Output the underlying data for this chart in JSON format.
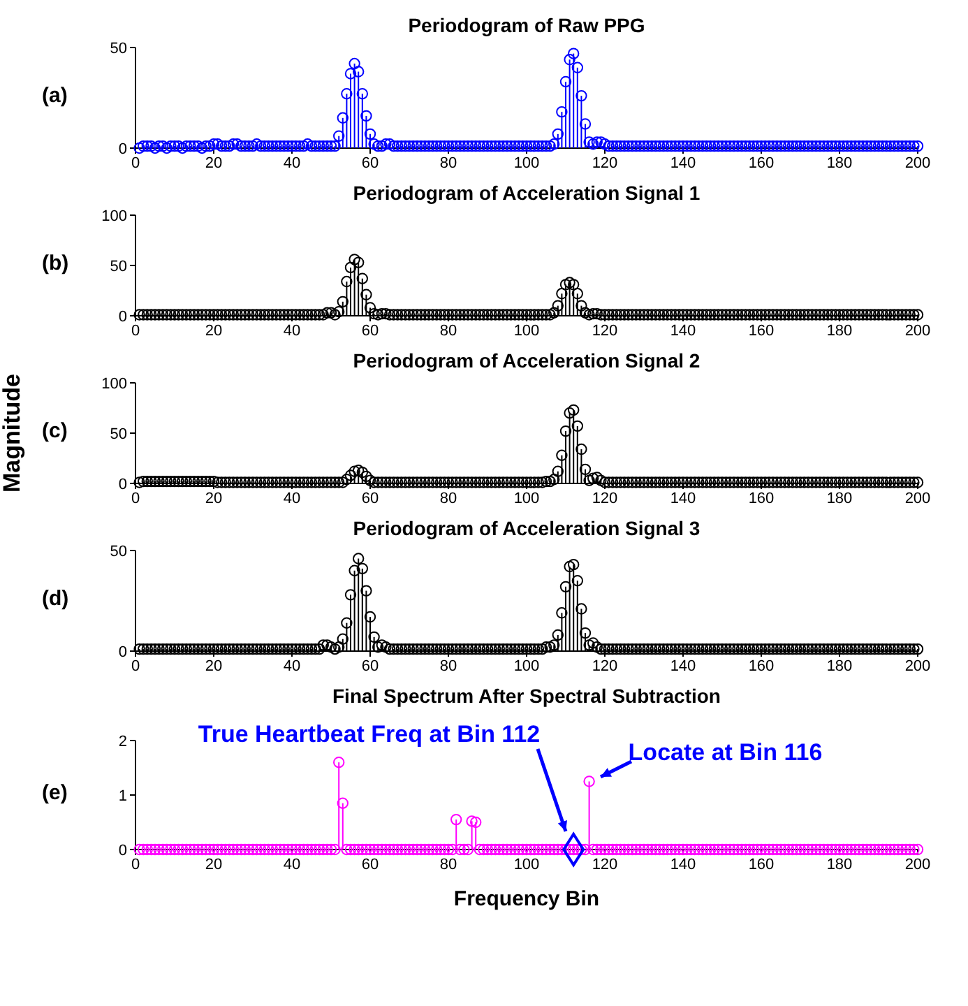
{
  "chart_data": [
    {
      "type": "lollipop",
      "title": "Periodogram of Raw PPG",
      "annotations": [
        "(a)"
      ],
      "marker": "circle",
      "xlim": [
        0,
        200
      ],
      "xticks": [
        0,
        20,
        40,
        60,
        80,
        100,
        120,
        140,
        160,
        180,
        200
      ],
      "ylim": [
        0,
        50
      ],
      "yticks": [
        0,
        50
      ],
      "x": [
        1,
        2,
        3,
        4,
        5,
        6,
        7,
        8,
        9,
        10,
        11,
        12,
        13,
        14,
        15,
        16,
        17,
        18,
        19,
        20,
        21,
        22,
        23,
        24,
        25,
        26,
        27,
        28,
        29,
        30,
        31,
        32,
        33,
        34,
        35,
        36,
        37,
        38,
        39,
        40,
        41,
        42,
        43,
        44,
        45,
        46,
        47,
        48,
        49,
        50,
        51,
        52,
        53,
        54,
        55,
        56,
        57,
        58,
        59,
        60,
        61,
        62,
        63,
        64,
        65,
        66,
        67,
        68,
        69,
        70,
        71,
        72,
        73,
        74,
        75,
        76,
        77,
        78,
        79,
        80,
        81,
        82,
        83,
        84,
        85,
        86,
        87,
        88,
        89,
        90,
        91,
        92,
        93,
        94,
        95,
        96,
        97,
        98,
        99,
        100,
        101,
        102,
        103,
        104,
        105,
        106,
        107,
        108,
        109,
        110,
        111,
        112,
        113,
        114,
        115,
        116,
        117,
        118,
        119,
        120,
        121,
        122,
        123,
        124,
        125,
        126,
        127,
        128,
        129,
        130,
        131,
        132,
        133,
        134,
        135,
        136,
        137,
        138,
        139,
        140,
        141,
        142,
        143,
        144,
        145,
        146,
        147,
        148,
        149,
        150,
        151,
        152,
        153,
        154,
        155,
        156,
        157,
        158,
        159,
        160,
        161,
        162,
        163,
        164,
        165,
        166,
        167,
        168,
        169,
        170,
        171,
        172,
        173,
        174,
        175,
        176,
        177,
        178,
        179,
        180,
        181,
        182,
        183,
        184,
        185,
        186,
        187,
        188,
        189,
        190,
        191,
        192,
        193,
        194,
        195,
        196,
        197,
        198,
        199,
        200
      ],
      "series": [
        {
          "color": "#0000ff",
          "values": [
            0,
            1,
            1,
            1,
            0,
            1,
            1,
            0,
            1,
            1,
            1,
            0,
            1,
            1,
            1,
            1,
            0,
            1,
            1,
            2,
            2,
            1,
            1,
            1,
            2,
            2,
            1,
            1,
            1,
            1,
            2,
            1,
            1,
            1,
            1,
            1,
            1,
            1,
            1,
            1,
            1,
            1,
            1,
            2,
            1,
            1,
            1,
            1,
            1,
            1,
            1,
            6,
            15,
            27,
            37,
            42,
            38,
            27,
            16,
            7,
            2,
            1,
            1,
            2,
            2,
            1,
            1,
            1,
            1,
            1,
            1,
            1,
            1,
            1,
            1,
            1,
            1,
            1,
            1,
            1,
            1,
            1,
            1,
            1,
            1,
            1,
            1,
            1,
            1,
            1,
            1,
            1,
            1,
            1,
            1,
            1,
            1,
            1,
            1,
            1,
            1,
            1,
            1,
            1,
            1,
            1,
            2,
            7,
            18,
            33,
            44,
            47,
            40,
            26,
            12,
            3,
            2,
            3,
            3,
            2,
            1,
            1,
            1,
            1,
            1,
            1,
            1,
            1,
            1,
            1,
            1,
            1,
            1,
            1,
            1,
            1,
            1,
            1,
            1,
            1,
            1,
            1,
            1,
            1,
            1,
            1,
            1,
            1,
            1,
            1,
            1,
            1,
            1,
            1,
            1,
            1,
            1,
            1,
            1,
            1,
            1,
            1,
            1,
            1,
            1,
            1,
            1,
            1,
            1,
            1,
            1,
            1,
            1,
            1,
            1,
            1,
            1,
            1,
            1,
            1,
            1,
            1,
            1,
            1,
            1,
            1,
            1,
            1,
            1,
            1,
            1,
            1,
            1,
            1,
            1,
            1,
            1,
            1,
            1,
            1
          ]
        }
      ]
    },
    {
      "type": "lollipop",
      "title": "Periodogram of Acceleration Signal 1",
      "annotations": [
        "(b)"
      ],
      "marker": "circle",
      "xlim": [
        0,
        200
      ],
      "xticks": [
        0,
        20,
        40,
        60,
        80,
        100,
        120,
        140,
        160,
        180,
        200
      ],
      "ylim": [
        0,
        100
      ],
      "yticks": [
        0,
        50,
        100
      ],
      "x": [
        1,
        2,
        3,
        4,
        5,
        6,
        7,
        8,
        9,
        10,
        11,
        12,
        13,
        14,
        15,
        16,
        17,
        18,
        19,
        20,
        21,
        22,
        23,
        24,
        25,
        26,
        27,
        28,
        29,
        30,
        31,
        32,
        33,
        34,
        35,
        36,
        37,
        38,
        39,
        40,
        41,
        42,
        43,
        44,
        45,
        46,
        47,
        48,
        49,
        50,
        51,
        52,
        53,
        54,
        55,
        56,
        57,
        58,
        59,
        60,
        61,
        62,
        63,
        64,
        65,
        66,
        67,
        68,
        69,
        70,
        71,
        72,
        73,
        74,
        75,
        76,
        77,
        78,
        79,
        80,
        81,
        82,
        83,
        84,
        85,
        86,
        87,
        88,
        89,
        90,
        91,
        92,
        93,
        94,
        95,
        96,
        97,
        98,
        99,
        100,
        101,
        102,
        103,
        104,
        105,
        106,
        107,
        108,
        109,
        110,
        111,
        112,
        113,
        114,
        115,
        116,
        117,
        118,
        119,
        120,
        121,
        122,
        123,
        124,
        125,
        126,
        127,
        128,
        129,
        130,
        131,
        132,
        133,
        134,
        135,
        136,
        137,
        138,
        139,
        140,
        141,
        142,
        143,
        144,
        145,
        146,
        147,
        148,
        149,
        150,
        151,
        152,
        153,
        154,
        155,
        156,
        157,
        158,
        159,
        160,
        161,
        162,
        163,
        164,
        165,
        166,
        167,
        168,
        169,
        170,
        171,
        172,
        173,
        174,
        175,
        176,
        177,
        178,
        179,
        180,
        181,
        182,
        183,
        184,
        185,
        186,
        187,
        188,
        189,
        190,
        191,
        192,
        193,
        194,
        195,
        196,
        197,
        198,
        199,
        200
      ],
      "series": [
        {
          "color": "#000000",
          "values": [
            1,
            1,
            1,
            1,
            1,
            1,
            1,
            1,
            1,
            1,
            1,
            1,
            1,
            1,
            1,
            1,
            1,
            1,
            1,
            1,
            1,
            1,
            1,
            1,
            1,
            1,
            1,
            1,
            1,
            1,
            1,
            1,
            1,
            1,
            1,
            1,
            1,
            1,
            1,
            1,
            1,
            1,
            1,
            1,
            1,
            1,
            1,
            1,
            3,
            3,
            1,
            4,
            14,
            34,
            48,
            56,
            53,
            37,
            21,
            8,
            2,
            1,
            2,
            2,
            1,
            1,
            1,
            1,
            1,
            1,
            1,
            1,
            1,
            1,
            1,
            1,
            1,
            1,
            1,
            1,
            1,
            1,
            1,
            1,
            1,
            1,
            1,
            1,
            1,
            1,
            1,
            1,
            1,
            1,
            1,
            1,
            1,
            1,
            1,
            1,
            1,
            1,
            1,
            1,
            1,
            1,
            3,
            10,
            22,
            31,
            33,
            31,
            22,
            10,
            3,
            1,
            2,
            2,
            1,
            1,
            1,
            1,
            1,
            1,
            1,
            1,
            1,
            1,
            1,
            1,
            1,
            1,
            1,
            1,
            1,
            1,
            1,
            1,
            1,
            1,
            1,
            1,
            1,
            1,
            1,
            1,
            1,
            1,
            1,
            1,
            1,
            1,
            1,
            1,
            1,
            1,
            1,
            1,
            1,
            1,
            1,
            1,
            1,
            1,
            1,
            1,
            1,
            1,
            1,
            1,
            1,
            1,
            1,
            1,
            1,
            1,
            1,
            1,
            1,
            1,
            1,
            1,
            1,
            1,
            1,
            1,
            1,
            1,
            1,
            1,
            1,
            1,
            1,
            1,
            1,
            1,
            1,
            1,
            1,
            1
          ]
        }
      ]
    },
    {
      "type": "lollipop",
      "title": "Periodogram of Acceleration Signal 2",
      "annotations": [
        "(c)"
      ],
      "ylabel": "Magnitude",
      "marker": "circle",
      "xlim": [
        0,
        200
      ],
      "xticks": [
        0,
        20,
        40,
        60,
        80,
        100,
        120,
        140,
        160,
        180,
        200
      ],
      "ylim": [
        0,
        100
      ],
      "yticks": [
        0,
        50,
        100
      ],
      "x": [
        1,
        2,
        3,
        4,
        5,
        6,
        7,
        8,
        9,
        10,
        11,
        12,
        13,
        14,
        15,
        16,
        17,
        18,
        19,
        20,
        21,
        22,
        23,
        24,
        25,
        26,
        27,
        28,
        29,
        30,
        31,
        32,
        33,
        34,
        35,
        36,
        37,
        38,
        39,
        40,
        41,
        42,
        43,
        44,
        45,
        46,
        47,
        48,
        49,
        50,
        51,
        52,
        53,
        54,
        55,
        56,
        57,
        58,
        59,
        60,
        61,
        62,
        63,
        64,
        65,
        66,
        67,
        68,
        69,
        70,
        71,
        72,
        73,
        74,
        75,
        76,
        77,
        78,
        79,
        80,
        81,
        82,
        83,
        84,
        85,
        86,
        87,
        88,
        89,
        90,
        91,
        92,
        93,
        94,
        95,
        96,
        97,
        98,
        99,
        100,
        101,
        102,
        103,
        104,
        105,
        106,
        107,
        108,
        109,
        110,
        111,
        112,
        113,
        114,
        115,
        116,
        117,
        118,
        119,
        120,
        121,
        122,
        123,
        124,
        125,
        126,
        127,
        128,
        129,
        130,
        131,
        132,
        133,
        134,
        135,
        136,
        137,
        138,
        139,
        140,
        141,
        142,
        143,
        144,
        145,
        146,
        147,
        148,
        149,
        150,
        151,
        152,
        153,
        154,
        155,
        156,
        157,
        158,
        159,
        160,
        161,
        162,
        163,
        164,
        165,
        166,
        167,
        168,
        169,
        170,
        171,
        172,
        173,
        174,
        175,
        176,
        177,
        178,
        179,
        180,
        181,
        182,
        183,
        184,
        185,
        186,
        187,
        188,
        189,
        190,
        191,
        192,
        193,
        194,
        195,
        196,
        197,
        198,
        199,
        200
      ],
      "series": [
        {
          "color": "#000000",
          "values": [
            1,
            2,
            2,
            2,
            2,
            2,
            2,
            2,
            2,
            2,
            2,
            2,
            2,
            2,
            2,
            2,
            2,
            2,
            2,
            2,
            1,
            1,
            1,
            1,
            1,
            1,
            1,
            1,
            1,
            1,
            1,
            1,
            1,
            1,
            1,
            1,
            1,
            1,
            1,
            1,
            1,
            1,
            1,
            1,
            1,
            1,
            1,
            1,
            1,
            1,
            1,
            1,
            1,
            4,
            8,
            12,
            13,
            11,
            7,
            3,
            1,
            1,
            1,
            1,
            1,
            1,
            1,
            1,
            1,
            1,
            1,
            1,
            1,
            1,
            1,
            1,
            1,
            1,
            1,
            1,
            1,
            1,
            1,
            1,
            1,
            1,
            1,
            1,
            1,
            1,
            1,
            1,
            1,
            1,
            1,
            1,
            1,
            1,
            1,
            1,
            1,
            1,
            1,
            1,
            2,
            2,
            4,
            12,
            28,
            52,
            70,
            73,
            57,
            34,
            14,
            3,
            5,
            6,
            3,
            1,
            1,
            1,
            1,
            1,
            1,
            1,
            1,
            1,
            1,
            1,
            1,
            1,
            1,
            1,
            1,
            1,
            1,
            1,
            1,
            1,
            1,
            1,
            1,
            1,
            1,
            1,
            1,
            1,
            1,
            1,
            1,
            1,
            1,
            1,
            1,
            1,
            1,
            1,
            1,
            1,
            1,
            1,
            1,
            1,
            1,
            1,
            1,
            1,
            1,
            1,
            1,
            1,
            1,
            1,
            1,
            1,
            1,
            1,
            1,
            1,
            1,
            1,
            1,
            1,
            1,
            1,
            1,
            1,
            1,
            1,
            1,
            1,
            1,
            1,
            1,
            1,
            1,
            1,
            1,
            1
          ]
        }
      ]
    },
    {
      "type": "lollipop",
      "title": "Periodogram of Acceleration Signal 3",
      "annotations": [
        "(d)"
      ],
      "marker": "circle",
      "xlim": [
        0,
        200
      ],
      "xticks": [
        0,
        20,
        40,
        60,
        80,
        100,
        120,
        140,
        160,
        180,
        200
      ],
      "ylim": [
        0,
        50
      ],
      "yticks": [
        0,
        50
      ],
      "x": [
        1,
        2,
        3,
        4,
        5,
        6,
        7,
        8,
        9,
        10,
        11,
        12,
        13,
        14,
        15,
        16,
        17,
        18,
        19,
        20,
        21,
        22,
        23,
        24,
        25,
        26,
        27,
        28,
        29,
        30,
        31,
        32,
        33,
        34,
        35,
        36,
        37,
        38,
        39,
        40,
        41,
        42,
        43,
        44,
        45,
        46,
        47,
        48,
        49,
        50,
        51,
        52,
        53,
        54,
        55,
        56,
        57,
        58,
        59,
        60,
        61,
        62,
        63,
        64,
        65,
        66,
        67,
        68,
        69,
        70,
        71,
        72,
        73,
        74,
        75,
        76,
        77,
        78,
        79,
        80,
        81,
        82,
        83,
        84,
        85,
        86,
        87,
        88,
        89,
        90,
        91,
        92,
        93,
        94,
        95,
        96,
        97,
        98,
        99,
        100,
        101,
        102,
        103,
        104,
        105,
        106,
        107,
        108,
        109,
        110,
        111,
        112,
        113,
        114,
        115,
        116,
        117,
        118,
        119,
        120,
        121,
        122,
        123,
        124,
        125,
        126,
        127,
        128,
        129,
        130,
        131,
        132,
        133,
        134,
        135,
        136,
        137,
        138,
        139,
        140,
        141,
        142,
        143,
        144,
        145,
        146,
        147,
        148,
        149,
        150,
        151,
        152,
        153,
        154,
        155,
        156,
        157,
        158,
        159,
        160,
        161,
        162,
        163,
        164,
        165,
        166,
        167,
        168,
        169,
        170,
        171,
        172,
        173,
        174,
        175,
        176,
        177,
        178,
        179,
        180,
        181,
        182,
        183,
        184,
        185,
        186,
        187,
        188,
        189,
        190,
        191,
        192,
        193,
        194,
        195,
        196,
        197,
        198,
        199,
        200
      ],
      "series": [
        {
          "color": "#000000",
          "values": [
            1,
            1,
            1,
            1,
            1,
            1,
            1,
            1,
            1,
            1,
            1,
            1,
            1,
            1,
            1,
            1,
            1,
            1,
            1,
            1,
            1,
            1,
            1,
            1,
            1,
            1,
            1,
            1,
            1,
            1,
            1,
            1,
            1,
            1,
            1,
            1,
            1,
            1,
            1,
            1,
            1,
            1,
            1,
            1,
            1,
            1,
            1,
            3,
            3,
            2,
            1,
            2,
            6,
            14,
            28,
            40,
            46,
            41,
            30,
            17,
            7,
            2,
            3,
            2,
            1,
            1,
            1,
            1,
            1,
            1,
            1,
            1,
            1,
            1,
            1,
            1,
            1,
            1,
            1,
            1,
            1,
            1,
            1,
            1,
            1,
            1,
            1,
            1,
            1,
            1,
            1,
            1,
            1,
            1,
            1,
            1,
            1,
            1,
            1,
            1,
            1,
            1,
            1,
            1,
            2,
            2,
            3,
            8,
            19,
            32,
            42,
            43,
            35,
            21,
            9,
            3,
            4,
            2,
            1,
            1,
            1,
            1,
            1,
            1,
            1,
            1,
            1,
            1,
            1,
            1,
            1,
            1,
            1,
            1,
            1,
            1,
            1,
            1,
            1,
            1,
            1,
            1,
            1,
            1,
            1,
            1,
            1,
            1,
            1,
            1,
            1,
            1,
            1,
            1,
            1,
            1,
            1,
            1,
            1,
            1,
            1,
            1,
            1,
            1,
            1,
            1,
            1,
            1,
            1,
            1,
            1,
            1,
            1,
            1,
            1,
            1,
            1,
            1,
            1,
            1,
            1,
            1,
            1,
            1,
            1,
            1,
            1,
            1,
            1,
            1,
            1,
            1,
            1,
            1,
            1,
            1,
            1,
            1,
            1,
            1
          ]
        }
      ]
    },
    {
      "type": "lollipop",
      "title": "Final Spectrum After Spectral Subtraction",
      "xlabel": "Frequency Bin",
      "annotations": [
        "(e)",
        "True Heartbeat Freq at Bin 112",
        {
          "text": "Locate at Bin 116",
          "x": 116,
          "y": 1.25
        }
      ],
      "marker": "circle",
      "xlim": [
        0,
        200
      ],
      "xticks": [
        0,
        20,
        40,
        60,
        80,
        100,
        120,
        140,
        160,
        180,
        200
      ],
      "ylim": [
        0,
        2
      ],
      "yticks": [
        0,
        1,
        2
      ],
      "x": [
        1,
        2,
        3,
        4,
        5,
        6,
        7,
        8,
        9,
        10,
        11,
        12,
        13,
        14,
        15,
        16,
        17,
        18,
        19,
        20,
        21,
        22,
        23,
        24,
        25,
        26,
        27,
        28,
        29,
        30,
        31,
        32,
        33,
        34,
        35,
        36,
        37,
        38,
        39,
        40,
        41,
        42,
        43,
        44,
        45,
        46,
        47,
        48,
        49,
        50,
        51,
        52,
        53,
        54,
        55,
        56,
        57,
        58,
        59,
        60,
        61,
        62,
        63,
        64,
        65,
        66,
        67,
        68,
        69,
        70,
        71,
        72,
        73,
        74,
        75,
        76,
        77,
        78,
        79,
        80,
        81,
        82,
        83,
        84,
        85,
        86,
        87,
        88,
        89,
        90,
        91,
        92,
        93,
        94,
        95,
        96,
        97,
        98,
        99,
        100,
        101,
        102,
        103,
        104,
        105,
        106,
        107,
        108,
        109,
        110,
        111,
        112,
        113,
        114,
        115,
        116,
        117,
        118,
        119,
        120,
        121,
        122,
        123,
        124,
        125,
        126,
        127,
        128,
        129,
        130,
        131,
        132,
        133,
        134,
        135,
        136,
        137,
        138,
        139,
        140,
        141,
        142,
        143,
        144,
        145,
        146,
        147,
        148,
        149,
        150,
        151,
        152,
        153,
        154,
        155,
        156,
        157,
        158,
        159,
        160,
        161,
        162,
        163,
        164,
        165,
        166,
        167,
        168,
        169,
        170,
        171,
        172,
        173,
        174,
        175,
        176,
        177,
        178,
        179,
        180,
        181,
        182,
        183,
        184,
        185,
        186,
        187,
        188,
        189,
        190,
        191,
        192,
        193,
        194,
        195,
        196,
        197,
        198,
        199,
        200
      ],
      "series": [
        {
          "color": "#ff00ff",
          "values": [
            0,
            0,
            0,
            0,
            0,
            0,
            0,
            0,
            0,
            0,
            0,
            0,
            0,
            0,
            0,
            0,
            0,
            0,
            0,
            0,
            0,
            0,
            0,
            0,
            0,
            0,
            0,
            0,
            0,
            0,
            0,
            0,
            0,
            0,
            0,
            0,
            0,
            0,
            0,
            0,
            0,
            0,
            0,
            0,
            0,
            0,
            0,
            0,
            0,
            0,
            0,
            1.6,
            0.85,
            0,
            0,
            0,
            0,
            0,
            0,
            0,
            0,
            0,
            0,
            0,
            0,
            0,
            0,
            0,
            0,
            0,
            0,
            0,
            0,
            0,
            0,
            0,
            0,
            0,
            0,
            0,
            0,
            0.55,
            0,
            0,
            0,
            0.52,
            0.5,
            0,
            0,
            0,
            0,
            0,
            0,
            0,
            0,
            0,
            0,
            0,
            0,
            0,
            0,
            0,
            0,
            0,
            0,
            0,
            0,
            0,
            0,
            0,
            0,
            0,
            0,
            0,
            0,
            1.25,
            0,
            0,
            0,
            0,
            0,
            0,
            0,
            0,
            0,
            0,
            0,
            0,
            0,
            0,
            0,
            0,
            0,
            0,
            0,
            0,
            0,
            0,
            0,
            0,
            0,
            0,
            0,
            0,
            0,
            0,
            0,
            0,
            0,
            0,
            0,
            0,
            0,
            0,
            0,
            0,
            0,
            0,
            0,
            0,
            0,
            0,
            0,
            0,
            0,
            0,
            0,
            0,
            0,
            0,
            0,
            0,
            0,
            0,
            0,
            0,
            0,
            0,
            0,
            0,
            0,
            0,
            0,
            0,
            0,
            0,
            0,
            0,
            0,
            0,
            0,
            0,
            0,
            0,
            0,
            0,
            0,
            0,
            0,
            0
          ]
        },
        {
          "type": "scatter",
          "marker": "diamond",
          "color": "#0000ff",
          "x": [
            112
          ],
          "values": [
            0
          ]
        }
      ]
    }
  ]
}
